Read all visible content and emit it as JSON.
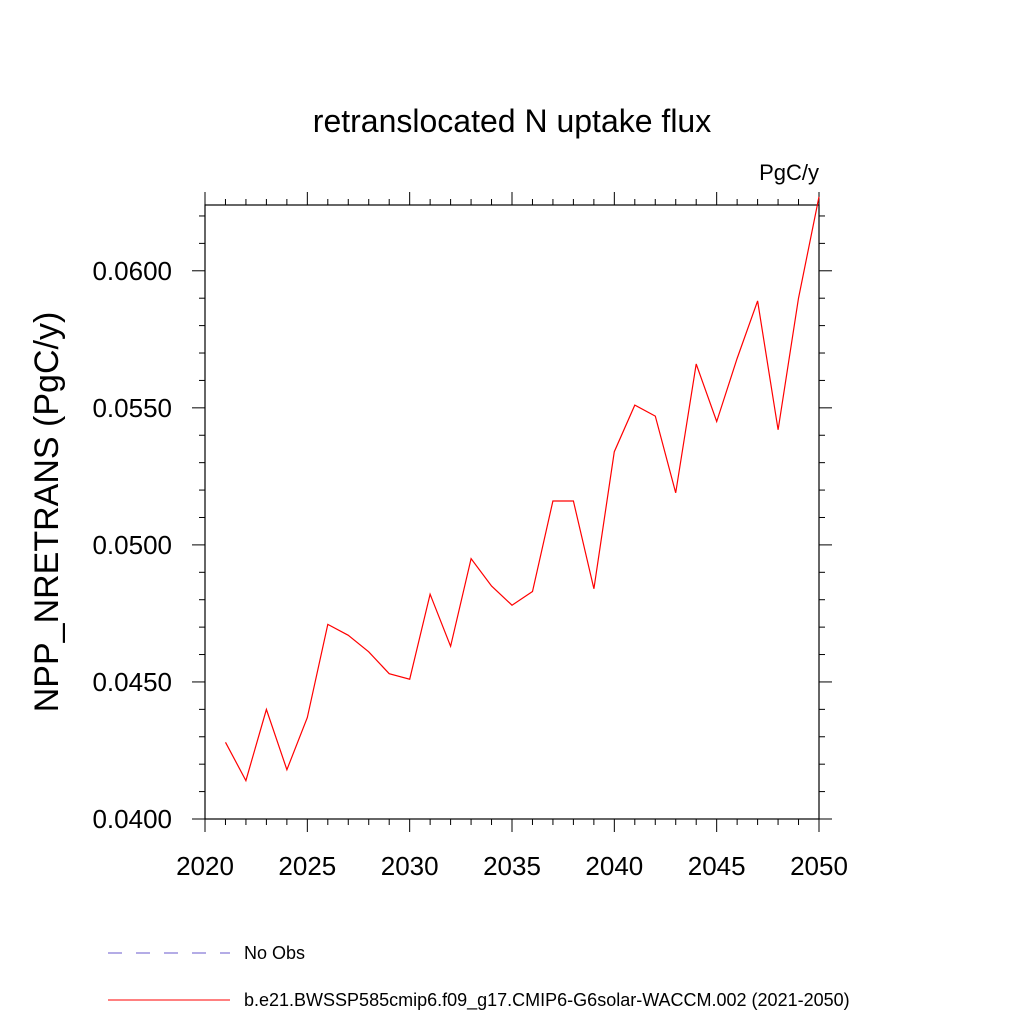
{
  "chart_data": {
    "type": "line",
    "title": "retranslocated N uptake flux",
    "units_label": "PgC/y",
    "ylabel": "NPP_NRETRANS  (PgC/y)",
    "xlabel": "",
    "xlim": [
      2020,
      2050
    ],
    "ylim": [
      0.04,
      0.0624
    ],
    "x_ticks": [
      2020,
      2025,
      2030,
      2035,
      2040,
      2045,
      2050
    ],
    "x_tick_labels": [
      "2020",
      "2025",
      "2030",
      "2035",
      "2040",
      "2045",
      "2050"
    ],
    "y_ticks": [
      0.04,
      0.045,
      0.05,
      0.055,
      0.06
    ],
    "y_tick_labels": [
      "0.0400",
      "0.0450",
      "0.0500",
      "0.0550",
      "0.0600"
    ],
    "grid": false,
    "legend_position": "bottom",
    "series": [
      {
        "name": "b.e21.BWSSP585cmip6.f09_g17.CMIP6-G6solar-WACCM.002 (2021-2050)",
        "color": "#ff0000",
        "style": "solid",
        "x": [
          2021,
          2022,
          2023,
          2024,
          2025,
          2026,
          2027,
          2028,
          2029,
          2030,
          2031,
          2032,
          2033,
          2034,
          2035,
          2036,
          2037,
          2038,
          2039,
          2040,
          2041,
          2042,
          2043,
          2044,
          2045,
          2046,
          2047,
          2048,
          2049,
          2050
        ],
        "y": [
          0.0428,
          0.0414,
          0.044,
          0.0418,
          0.0437,
          0.0471,
          0.0467,
          0.0461,
          0.0453,
          0.0451,
          0.0482,
          0.0463,
          0.0495,
          0.0485,
          0.0478,
          0.0483,
          0.0516,
          0.0516,
          0.0484,
          0.0534,
          0.0551,
          0.0547,
          0.0519,
          0.0566,
          0.0545,
          0.0568,
          0.0589,
          0.0542,
          0.059,
          0.0627
        ]
      }
    ],
    "legend": [
      {
        "label": "No Obs",
        "color": "#6a5acd",
        "style": "dashed"
      },
      {
        "label": "b.e21.BWSSP585cmip6.f09_g17.CMIP6-G6solar-WACCM.002 (2021-2050)",
        "color": "#ff0000",
        "style": "solid"
      }
    ]
  }
}
